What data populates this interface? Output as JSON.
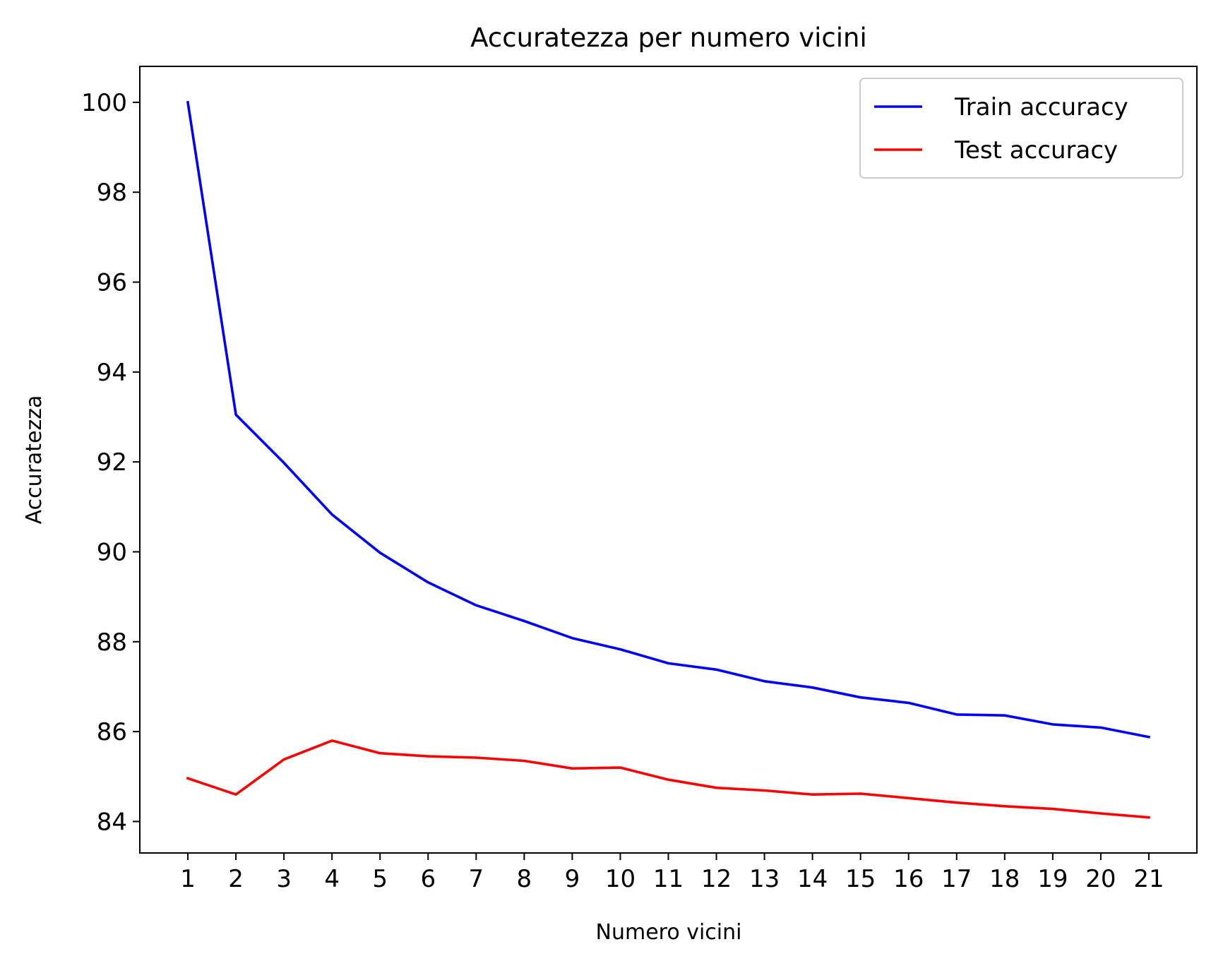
{
  "chart_data": {
    "type": "line",
    "title": "Accuratezza per numero vicini",
    "xlabel": "Numero vicini",
    "ylabel": "Accuratezza",
    "x": [
      1,
      2,
      3,
      4,
      5,
      6,
      7,
      8,
      9,
      10,
      11,
      12,
      13,
      14,
      15,
      16,
      17,
      18,
      19,
      20,
      21
    ],
    "xlim": [
      0,
      22
    ],
    "ylim": [
      83.3,
      100.8
    ],
    "yticks": [
      84,
      86,
      88,
      90,
      92,
      94,
      96,
      98,
      100
    ],
    "grid": false,
    "legend_position": "top-right",
    "series": [
      {
        "name": "Train accuracy",
        "color": "#0000ff",
        "values": [
          100.0,
          93.05,
          91.98,
          90.83,
          89.98,
          89.32,
          88.81,
          88.46,
          88.08,
          87.83,
          87.52,
          87.38,
          87.12,
          86.98,
          86.76,
          86.64,
          86.38,
          86.36,
          86.16,
          86.09,
          85.88
        ]
      },
      {
        "name": "Test accuracy",
        "color": "#ff0000",
        "values": [
          84.96,
          84.6,
          85.38,
          85.8,
          85.52,
          85.45,
          85.42,
          85.35,
          85.18,
          85.2,
          84.93,
          84.75,
          84.69,
          84.6,
          84.62,
          84.52,
          84.42,
          84.34,
          84.28,
          84.18,
          84.09
        ]
      }
    ]
  }
}
